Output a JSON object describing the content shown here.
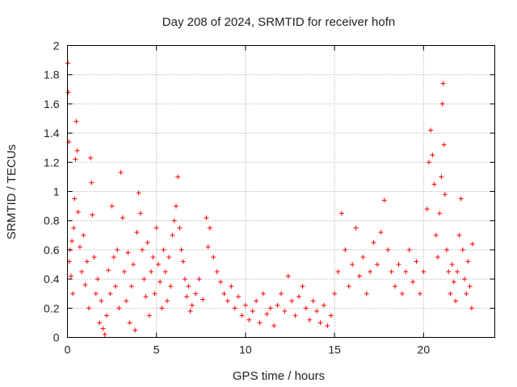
{
  "chart_data": {
    "type": "scatter",
    "title": "Day 208 of 2024, SRMTID for receiver hofn",
    "xlabel": "GPS time / hours",
    "ylabel": "SRMTID / TECUs",
    "xlim": [
      0,
      24
    ],
    "ylim": [
      0,
      2
    ],
    "x_ticks": [
      0,
      5,
      10,
      15,
      20
    ],
    "x_tick_labels": [
      "0",
      "5",
      "10",
      "15",
      "20"
    ],
    "y_ticks": [
      0,
      0.2,
      0.4,
      0.6,
      0.8,
      1,
      1.2,
      1.4,
      1.6,
      1.8,
      2
    ],
    "y_tick_labels": [
      "0",
      "0.2",
      "0.4",
      "0.6",
      "0.8",
      "1",
      "1.2",
      "1.4",
      "1.6",
      "1.8",
      "2"
    ],
    "grid": true,
    "marker": "+",
    "color": "#ff0000",
    "series": [
      {
        "name": "SRMTID",
        "points": [
          [
            0.02,
            1.88
          ],
          [
            0.05,
            1.68
          ],
          [
            0.08,
            1.34
          ],
          [
            0.1,
            0.52
          ],
          [
            0.15,
            0.6
          ],
          [
            0.2,
            0.42
          ],
          [
            0.25,
            0.66
          ],
          [
            0.3,
            0.3
          ],
          [
            0.35,
            0.75
          ],
          [
            0.4,
            0.95
          ],
          [
            0.45,
            1.22
          ],
          [
            0.5,
            1.48
          ],
          [
            0.55,
            1.28
          ],
          [
            0.6,
            0.86
          ],
          [
            0.7,
            0.62
          ],
          [
            0.8,
            0.45
          ],
          [
            0.9,
            0.7
          ],
          [
            1.0,
            0.36
          ],
          [
            1.1,
            0.52
          ],
          [
            1.2,
            0.2
          ],
          [
            1.3,
            1.23
          ],
          [
            1.35,
            1.06
          ],
          [
            1.4,
            0.84
          ],
          [
            1.5,
            0.55
          ],
          [
            1.6,
            0.3
          ],
          [
            1.7,
            0.4
          ],
          [
            1.8,
            0.1
          ],
          [
            1.9,
            0.25
          ],
          [
            2.0,
            0.06
          ],
          [
            2.1,
            0.02
          ],
          [
            2.2,
            0.15
          ],
          [
            2.3,
            0.46
          ],
          [
            2.4,
            0.3
          ],
          [
            2.5,
            0.9
          ],
          [
            2.6,
            0.55
          ],
          [
            2.7,
            0.35
          ],
          [
            2.8,
            0.6
          ],
          [
            2.9,
            0.2
          ],
          [
            3.0,
            1.13
          ],
          [
            3.1,
            0.82
          ],
          [
            3.2,
            0.45
          ],
          [
            3.3,
            0.25
          ],
          [
            3.4,
            0.58
          ],
          [
            3.5,
            0.1
          ],
          [
            3.6,
            0.35
          ],
          [
            3.7,
            0.5
          ],
          [
            3.8,
            0.05
          ],
          [
            3.9,
            0.72
          ],
          [
            4.0,
            0.99
          ],
          [
            4.1,
            0.85
          ],
          [
            4.2,
            0.6
          ],
          [
            4.3,
            0.4
          ],
          [
            4.4,
            0.28
          ],
          [
            4.5,
            0.65
          ],
          [
            4.6,
            0.15
          ],
          [
            4.7,
            0.45
          ],
          [
            4.8,
            0.55
          ],
          [
            4.9,
            0.3
          ],
          [
            5.0,
            0.75
          ],
          [
            5.1,
            0.5
          ],
          [
            5.2,
            0.38
          ],
          [
            5.3,
            0.2
          ],
          [
            5.4,
            0.6
          ],
          [
            5.5,
            0.45
          ],
          [
            5.6,
            0.25
          ],
          [
            5.7,
            0.55
          ],
          [
            5.8,
            0.35
          ],
          [
            5.9,
            0.7
          ],
          [
            6.0,
            0.8
          ],
          [
            6.1,
            0.9
          ],
          [
            6.2,
            1.1
          ],
          [
            6.3,
            0.75
          ],
          [
            6.4,
            0.6
          ],
          [
            6.5,
            0.52
          ],
          [
            6.6,
            0.4
          ],
          [
            6.7,
            0.28
          ],
          [
            6.8,
            0.35
          ],
          [
            6.9,
            0.18
          ],
          [
            7.0,
            0.22
          ],
          [
            7.2,
            0.3
          ],
          [
            7.4,
            0.4
          ],
          [
            7.6,
            0.26
          ],
          [
            7.8,
            0.82
          ],
          [
            7.9,
            0.62
          ],
          [
            8.0,
            0.75
          ],
          [
            8.2,
            0.55
          ],
          [
            8.4,
            0.45
          ],
          [
            8.6,
            0.38
          ],
          [
            8.8,
            0.3
          ],
          [
            9.0,
            0.25
          ],
          [
            9.2,
            0.35
          ],
          [
            9.4,
            0.2
          ],
          [
            9.6,
            0.28
          ],
          [
            9.8,
            0.15
          ],
          [
            10.0,
            0.22
          ],
          [
            10.2,
            0.12
          ],
          [
            10.4,
            0.18
          ],
          [
            10.6,
            0.25
          ],
          [
            10.8,
            0.1
          ],
          [
            11.0,
            0.3
          ],
          [
            11.2,
            0.16
          ],
          [
            11.4,
            0.2
          ],
          [
            11.6,
            0.08
          ],
          [
            11.8,
            0.22
          ],
          [
            12.0,
            0.3
          ],
          [
            12.2,
            0.18
          ],
          [
            12.4,
            0.42
          ],
          [
            12.6,
            0.25
          ],
          [
            12.8,
            0.15
          ],
          [
            13.0,
            0.28
          ],
          [
            13.2,
            0.35
          ],
          [
            13.4,
            0.2
          ],
          [
            13.6,
            0.12
          ],
          [
            13.8,
            0.25
          ],
          [
            14.0,
            0.18
          ],
          [
            14.2,
            0.1
          ],
          [
            14.4,
            0.22
          ],
          [
            14.6,
            0.08
          ],
          [
            14.8,
            0.15
          ],
          [
            15.0,
            0.3
          ],
          [
            15.2,
            0.45
          ],
          [
            15.4,
            0.85
          ],
          [
            15.6,
            0.6
          ],
          [
            15.8,
            0.35
          ],
          [
            16.0,
            0.5
          ],
          [
            16.2,
            0.75
          ],
          [
            16.4,
            0.42
          ],
          [
            16.6,
            0.55
          ],
          [
            16.8,
            0.3
          ],
          [
            17.0,
            0.45
          ],
          [
            17.2,
            0.65
          ],
          [
            17.4,
            0.5
          ],
          [
            17.6,
            0.72
          ],
          [
            17.8,
            0.94
          ],
          [
            18.0,
            0.6
          ],
          [
            18.2,
            0.45
          ],
          [
            18.4,
            0.35
          ],
          [
            18.6,
            0.5
          ],
          [
            18.8,
            0.3
          ],
          [
            19.0,
            0.45
          ],
          [
            19.2,
            0.6
          ],
          [
            19.4,
            0.38
          ],
          [
            19.6,
            0.52
          ],
          [
            19.8,
            0.3
          ],
          [
            20.0,
            0.45
          ],
          [
            20.2,
            0.88
          ],
          [
            20.3,
            1.2
          ],
          [
            20.4,
            1.42
          ],
          [
            20.5,
            1.25
          ],
          [
            20.6,
            1.05
          ],
          [
            20.7,
            0.7
          ],
          [
            20.8,
            0.55
          ],
          [
            20.9,
            0.85
          ],
          [
            21.0,
            1.1
          ],
          [
            21.05,
            1.6
          ],
          [
            21.1,
            1.74
          ],
          [
            21.15,
            1.32
          ],
          [
            21.2,
            0.98
          ],
          [
            21.3,
            0.6
          ],
          [
            21.4,
            0.45
          ],
          [
            21.5,
            0.3
          ],
          [
            21.6,
            0.5
          ],
          [
            21.7,
            0.38
          ],
          [
            21.8,
            0.25
          ],
          [
            21.9,
            0.45
          ],
          [
            22.0,
            0.7
          ],
          [
            22.1,
            0.95
          ],
          [
            22.2,
            0.6
          ],
          [
            22.3,
            0.4
          ],
          [
            22.4,
            0.3
          ],
          [
            22.5,
            0.52
          ],
          [
            22.6,
            0.35
          ],
          [
            22.7,
            0.2
          ],
          [
            22.75,
            0.64
          ]
        ]
      }
    ]
  }
}
